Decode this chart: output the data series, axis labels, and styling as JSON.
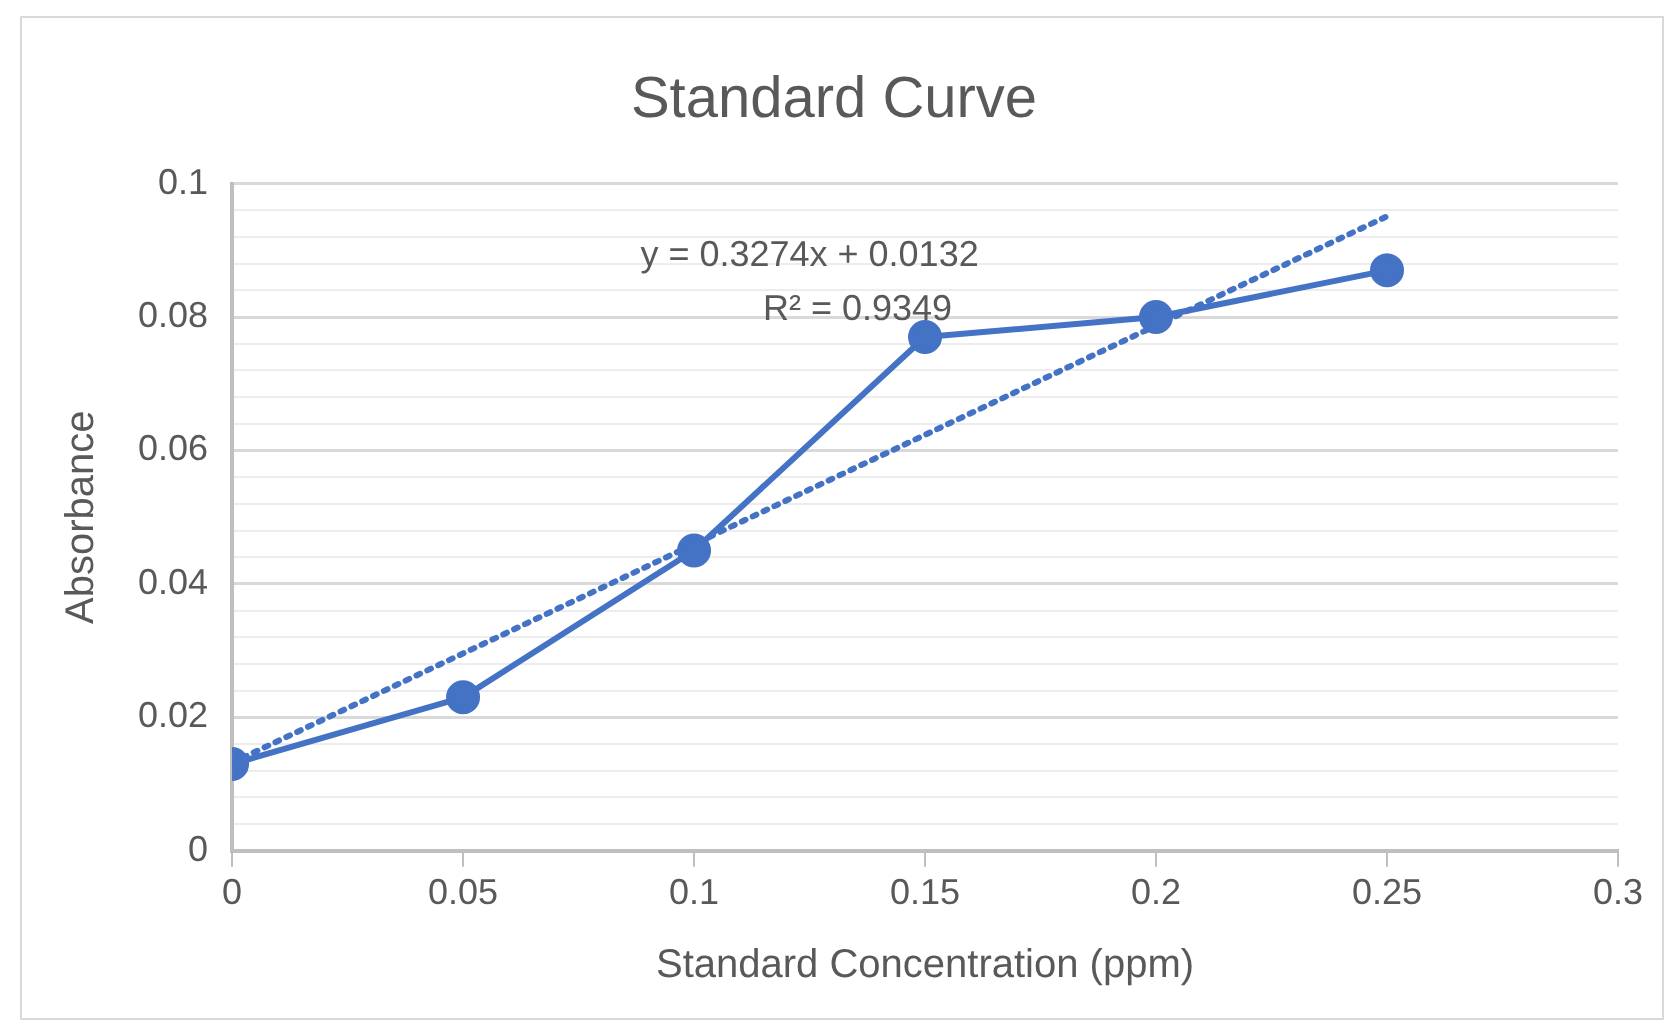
{
  "chart_data": {
    "type": "line",
    "title": "Standard Curve",
    "xlabel": "Standard Concentration (ppm)",
    "ylabel": "Absorbance",
    "xlim": [
      0,
      0.3
    ],
    "xticks": [
      0,
      0.05,
      0.1,
      0.15,
      0.2,
      0.25,
      0.3
    ],
    "ylim": [
      0,
      0.1
    ],
    "yticks": [
      0,
      {
        "value": 0.004,
        "label": null
      },
      {
        "value": 0.008,
        "label": null
      },
      {
        "value": 0.012,
        "label": null
      },
      {
        "value": 0.016,
        "label": null
      },
      0.02,
      {
        "value": 0.024,
        "label": null
      },
      {
        "value": 0.028,
        "label": null
      },
      {
        "value": 0.032,
        "label": null
      },
      {
        "value": 0.036,
        "label": null
      },
      0.04,
      {
        "value": 0.044,
        "label": null
      },
      {
        "value": 0.048,
        "label": null
      },
      {
        "value": 0.052,
        "label": null
      },
      {
        "value": 0.056,
        "label": null
      },
      0.06,
      {
        "value": 0.064,
        "label": null
      },
      {
        "value": 0.068,
        "label": null
      },
      {
        "value": 0.072,
        "label": null
      },
      {
        "value": 0.076,
        "label": null
      },
      0.08,
      {
        "value": 0.084,
        "label": null
      },
      {
        "value": 0.088,
        "label": null
      },
      {
        "value": 0.092,
        "label": null
      },
      {
        "value": 0.096,
        "label": null
      },
      0.1
    ],
    "grid": "y",
    "legend": false,
    "series": [
      {
        "color": "#4472c4",
        "marker": "circle",
        "line_style": "solid",
        "x": [
          0,
          0.05,
          0.1,
          0.15,
          0.2,
          0.25
        ],
        "values": [
          0.013,
          0.023,
          0.045,
          0.077,
          0.08,
          0.087
        ]
      },
      {
        "color": "#4472c4",
        "marker": "none",
        "line_style": "dotted",
        "x": [
          0,
          0.25
        ],
        "values": [
          0.0132,
          0.0951
        ]
      }
    ],
    "annotations": [
      "y = 0.3274x + 0.0132",
      "R² = 0.9349"
    ]
  }
}
